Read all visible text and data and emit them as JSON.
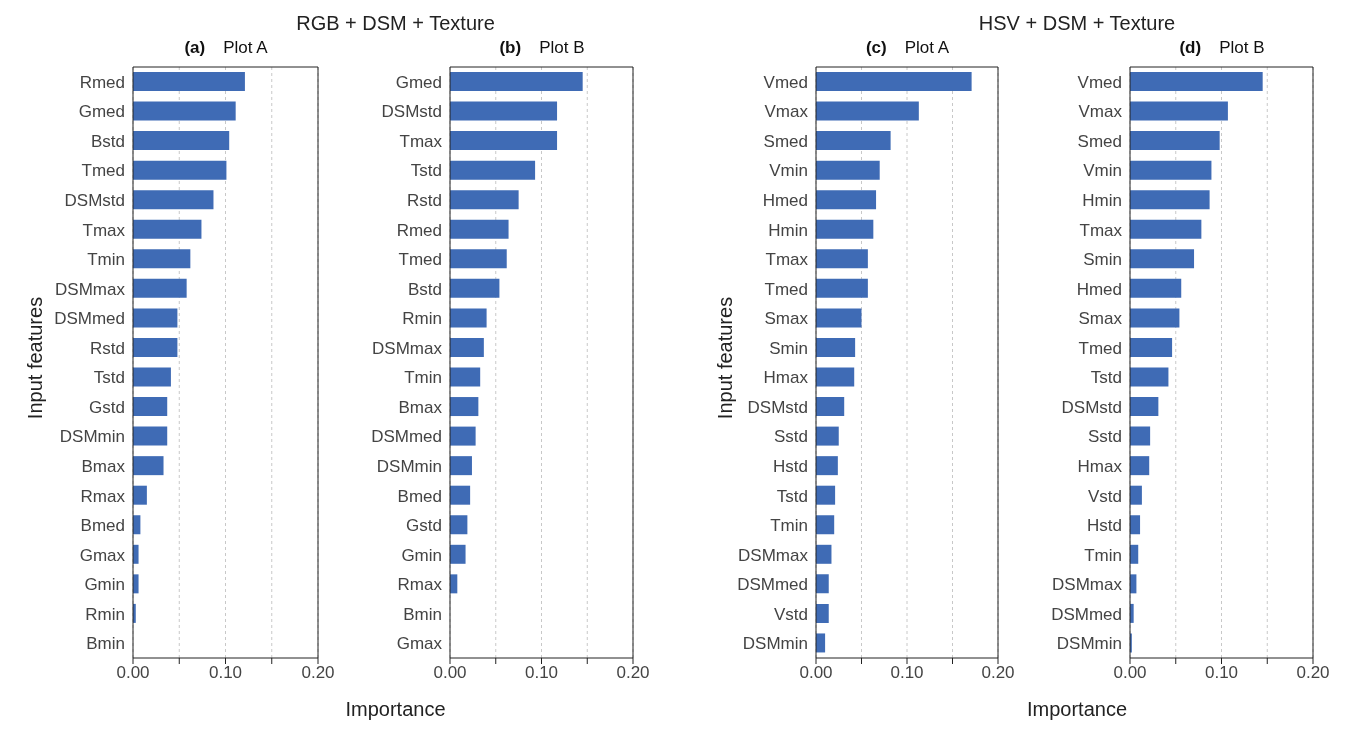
{
  "chart_data": [
    {
      "type": "bar",
      "orientation": "horizontal",
      "title": "RGB + DSM + Texture",
      "subtitle": "(a)",
      "annotations": [
        "Plot A"
      ],
      "xlabel": "Importance",
      "ylabel": "Input features",
      "categories": [
        "Rmed",
        "Gmed",
        "Bstd",
        "Tmed",
        "DSMstd",
        "Tmax",
        "Tmin",
        "DSMmax",
        "DSMmed",
        "Rstd",
        "Tstd",
        "Gstd",
        "DSMmin",
        "Bmax",
        "Rmax",
        "Bmed",
        "Gmax",
        "Gmin",
        "Rmin",
        "Bmin"
      ],
      "values": [
        0.121,
        0.111,
        0.104,
        0.101,
        0.087,
        0.074,
        0.062,
        0.058,
        0.048,
        0.048,
        0.041,
        0.037,
        0.037,
        0.033,
        0.015,
        0.008,
        0.006,
        0.006,
        0.003,
        0
      ],
      "color": "#3f6bb5",
      "xlim": [
        0,
        0.2
      ],
      "xticks": [
        {
          "value": 0,
          "label": "0.00"
        },
        {
          "value": 0.05,
          "label": null
        },
        {
          "value": 0.1,
          "label": "0.10"
        },
        {
          "value": 0.15,
          "label": null
        },
        {
          "value": 0.2,
          "label": "0.20"
        }
      ],
      "grid": "x",
      "legend": false
    },
    {
      "type": "bar",
      "orientation": "horizontal",
      "subtitle": "(b)",
      "annotations": [
        "Plot B"
      ],
      "categories": [
        "Gmed",
        "DSMstd",
        "Tmax",
        "Tstd",
        "Rstd",
        "Rmed",
        "Tmed",
        "Bstd",
        "Rmin",
        "DSMmax",
        "Tmin",
        "Bmax",
        "DSMmed",
        "DSMmin",
        "Bmed",
        "Gstd",
        "Gmin",
        "Rmax",
        "Bmin",
        "Gmax"
      ],
      "values": [
        0.145,
        0.117,
        0.117,
        0.093,
        0.075,
        0.064,
        0.062,
        0.054,
        0.04,
        0.037,
        0.033,
        0.031,
        0.028,
        0.024,
        0.022,
        0.019,
        0.017,
        0.008,
        0,
        0
      ],
      "color": "#3f6bb5",
      "xlim": [
        0,
        0.2
      ],
      "xticks": [
        {
          "value": 0,
          "label": "0.00"
        },
        {
          "value": 0.05,
          "label": null
        },
        {
          "value": 0.1,
          "label": "0.10"
        },
        {
          "value": 0.15,
          "label": null
        },
        {
          "value": 0.2,
          "label": "0.20"
        }
      ],
      "grid": "x",
      "legend": false
    },
    {
      "type": "bar",
      "orientation": "horizontal",
      "title": "HSV + DSM + Texture",
      "subtitle": "(c)",
      "annotations": [
        "Plot A"
      ],
      "xlabel": "Importance",
      "ylabel": "Input features",
      "categories": [
        "Vmed",
        "Vmax",
        "Smed",
        "Vmin",
        "Hmed",
        "Hmin",
        "Tmax",
        "Tmed",
        "Smax",
        "Smin",
        "Hmax",
        "DSMstd",
        "Sstd",
        "Hstd",
        "Tstd",
        "Tmin",
        "DSMmax",
        "DSMmed",
        "Vstd",
        "DSMmin"
      ],
      "values": [
        0.171,
        0.113,
        0.082,
        0.07,
        0.066,
        0.063,
        0.057,
        0.057,
        0.05,
        0.043,
        0.042,
        0.031,
        0.025,
        0.024,
        0.021,
        0.02,
        0.017,
        0.014,
        0.014,
        0.01
      ],
      "color": "#3f6bb5",
      "xlim": [
        0,
        0.2
      ],
      "xticks": [
        {
          "value": 0,
          "label": "0.00"
        },
        {
          "value": 0.05,
          "label": null
        },
        {
          "value": 0.1,
          "label": "0.10"
        },
        {
          "value": 0.15,
          "label": null
        },
        {
          "value": 0.2,
          "label": "0.20"
        }
      ],
      "grid": "x",
      "legend": false
    },
    {
      "type": "bar",
      "orientation": "horizontal",
      "subtitle": "(d)",
      "annotations": [
        "Plot B"
      ],
      "categories": [
        "Vmed",
        "Vmax",
        "Smed",
        "Vmin",
        "Hmin",
        "Tmax",
        "Smin",
        "Hmed",
        "Smax",
        "Tmed",
        "Tstd",
        "DSMstd",
        "Sstd",
        "Hmax",
        "Vstd",
        "Hstd",
        "Tmin",
        "DSMmax",
        "DSMmed",
        "DSMmin"
      ],
      "values": [
        0.145,
        0.107,
        0.098,
        0.089,
        0.087,
        0.078,
        0.07,
        0.056,
        0.054,
        0.046,
        0.042,
        0.031,
        0.022,
        0.021,
        0.013,
        0.011,
        0.009,
        0.007,
        0.004,
        0.002
      ],
      "color": "#3f6bb5",
      "xlim": [
        0,
        0.2
      ],
      "xticks": [
        {
          "value": 0,
          "label": "0.00"
        },
        {
          "value": 0.05,
          "label": null
        },
        {
          "value": 0.1,
          "label": "0.10"
        },
        {
          "value": 0.15,
          "label": null
        },
        {
          "value": 0.2,
          "label": "0.20"
        }
      ],
      "grid": "x",
      "legend": false
    }
  ]
}
